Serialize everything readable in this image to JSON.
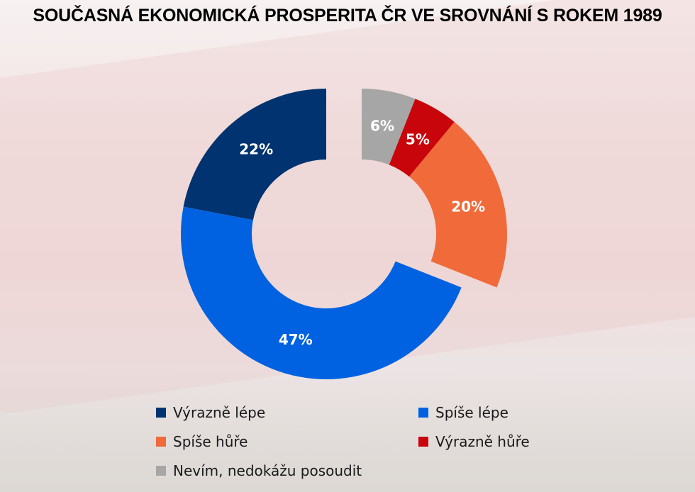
{
  "title": "SOUČASNÁ EKONOMICKÁ PROSPERITA ČR VE SROVNÁNÍ S ROKEM 1989",
  "chart_data": {
    "type": "pie",
    "subtype": "donut",
    "slices": [
      {
        "name": "Výrazně lépe",
        "value": 22,
        "label": "22%",
        "color": "#003370"
      },
      {
        "name": "Spíše lépe",
        "value": 47,
        "label": "47%",
        "color": "#0062e0"
      },
      {
        "name": "Spíše hůře",
        "value": 20,
        "label": "20%",
        "color": "#f06a3a"
      },
      {
        "name": "Výrazně hůře",
        "value": 5,
        "label": "5%",
        "color": "#c8050b"
      },
      {
        "name": "Nevím, nedokážu posoudit",
        "value": 6,
        "label": "6%",
        "color": "#a6a6a6"
      }
    ],
    "legend_position": "bottom"
  },
  "legend": {
    "items": [
      {
        "label": "Výrazně lépe",
        "color": "#003370"
      },
      {
        "label": "Spíše lépe",
        "color": "#0062e0"
      },
      {
        "label": "Spíše hůře",
        "color": "#f06a3a"
      },
      {
        "label": "Výrazně hůře",
        "color": "#c8050b"
      },
      {
        "label": "Nevím, nedokážu posoudit",
        "color": "#a6a6a6"
      }
    ]
  }
}
